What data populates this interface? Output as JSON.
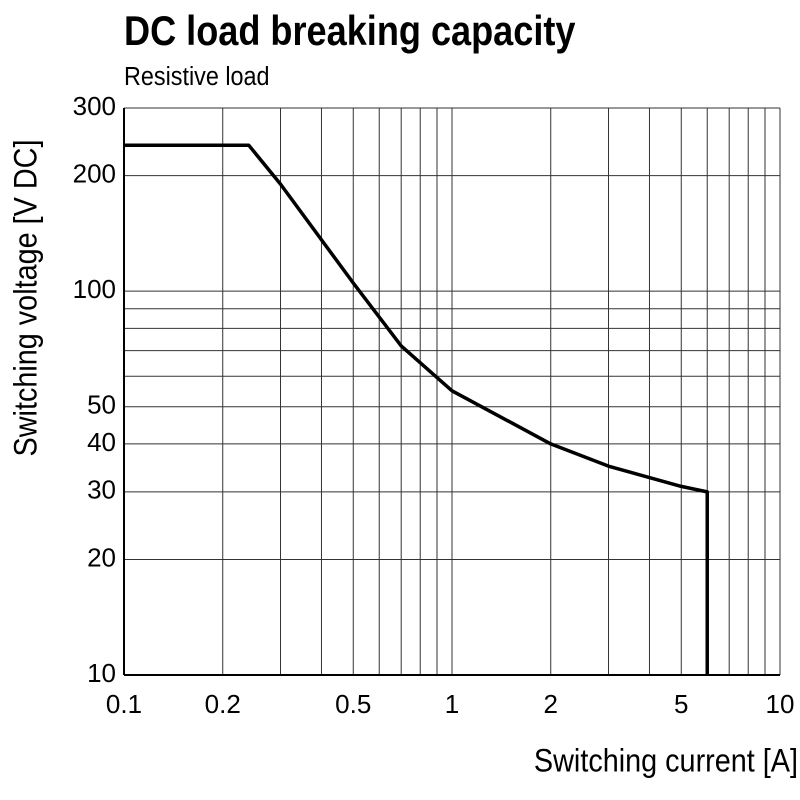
{
  "chart_data": {
    "type": "line",
    "title": "DC load breaking capacity",
    "subtitle": "Resistive load",
    "x_label": "Switching current [A]",
    "y_label": "Switching voltage [V DC]",
    "x_scale": "log",
    "y_scale": "log",
    "xlim": [
      0.1,
      10
    ],
    "ylim": [
      10,
      300
    ],
    "xticks": [
      0.1,
      0.2,
      0.5,
      1,
      2,
      5,
      10
    ],
    "yticks": [
      10,
      20,
      30,
      40,
      50,
      100,
      200,
      300
    ],
    "x_minor_grid": [
      0.3,
      0.4,
      0.6,
      0.7,
      0.8,
      0.9,
      3,
      4,
      6,
      7,
      8,
      9
    ],
    "y_minor_grid": [
      60,
      70,
      80,
      90
    ],
    "grid": true,
    "series": [
      {
        "color": "#000000",
        "x": [
          0.1,
          0.24,
          0.3,
          0.5,
          0.7,
          1,
          2,
          3,
          5,
          6,
          6
        ],
        "values": [
          240,
          240,
          190,
          105,
          72,
          55,
          40,
          35,
          31,
          30,
          10
        ]
      }
    ]
  }
}
